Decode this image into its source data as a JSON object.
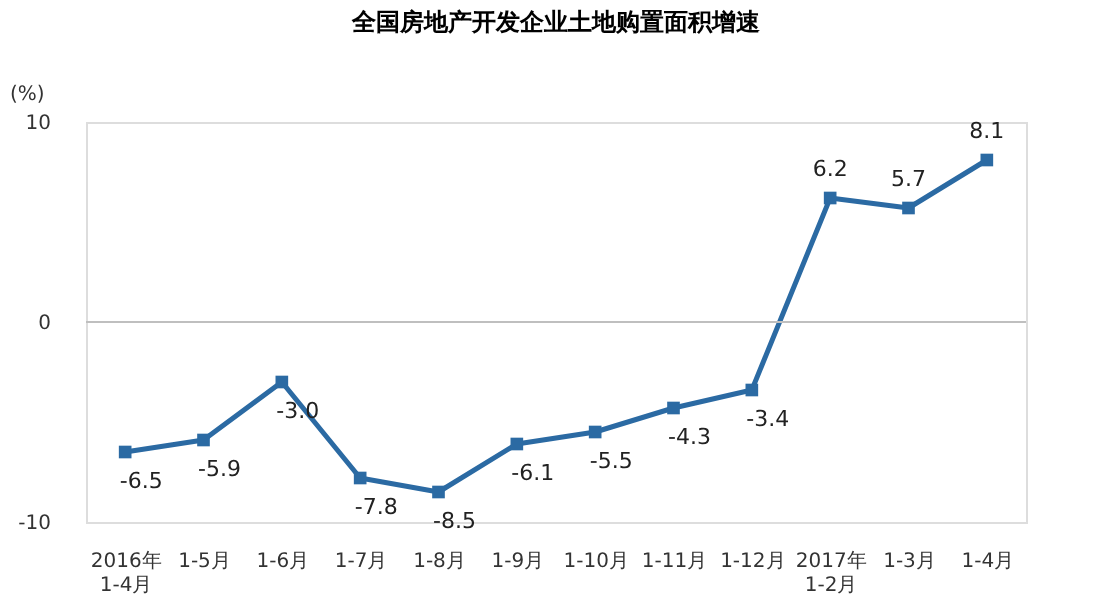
{
  "chart_data": {
    "type": "line",
    "title": "全国房地产开发企业土地购置面积增速",
    "ylabel": "(%)",
    "categories": [
      "2016年\n1-4月",
      "1-5月",
      "1-6月",
      "1-7月",
      "1-8月",
      "1-9月",
      "1-10月",
      "1-11月",
      "1-12月",
      "2017年\n1-2月",
      "1-3月",
      "1-4月"
    ],
    "series": [
      {
        "color": "#2b6aa3",
        "values": [
          -6.5,
          -5.9,
          -3.0,
          -7.8,
          -8.5,
          -6.1,
          -5.5,
          -4.3,
          -3.4,
          6.2,
          5.7,
          8.1
        ],
        "value_labels": [
          "-6.5",
          "-5.9",
          "-3.0",
          "-7.8",
          "-8.5",
          "-6.1",
          "-5.5",
          "-4.3",
          "-3.4",
          "6.2",
          "5.7",
          "8.1"
        ]
      }
    ],
    "ylim": [
      -10,
      10
    ],
    "yticks": [
      -10,
      0,
      10
    ],
    "grid": false,
    "marker": "square",
    "line_style": "solid",
    "ref_lines": [
      {
        "axis": "y",
        "value": 0,
        "color": "#bfbfbf"
      }
    ]
  }
}
